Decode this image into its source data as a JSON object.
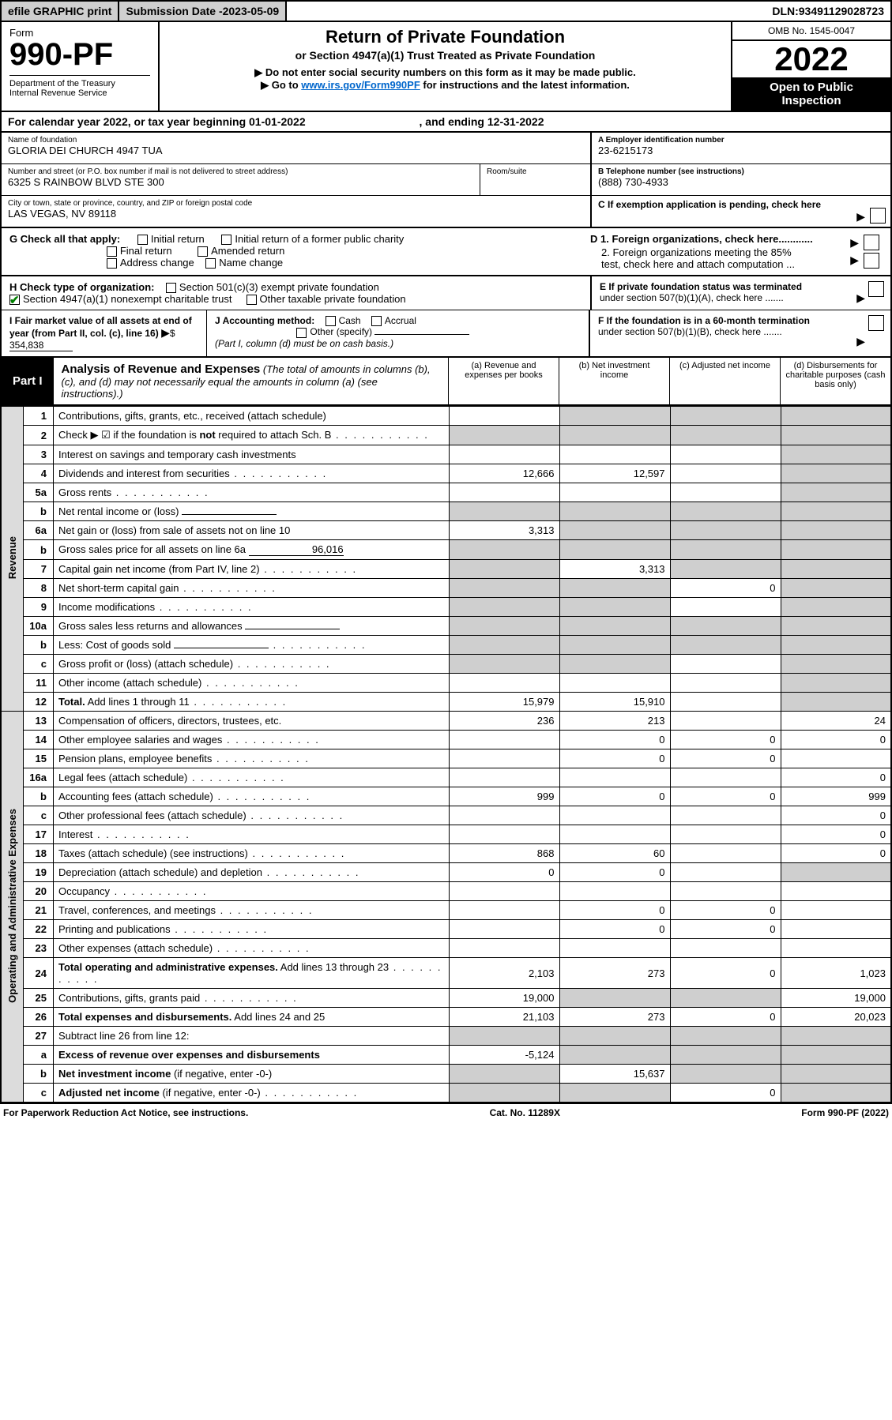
{
  "topbar": {
    "efile": "efile GRAPHIC print",
    "submission_label": "Submission Date - ",
    "submission_date": "2023-05-09",
    "dln_label": "DLN: ",
    "dln": "93491129028723"
  },
  "header": {
    "form_word": "Form",
    "form_num": "990-PF",
    "dept1": "Department of the Treasury",
    "dept2": "Internal Revenue Service",
    "title": "Return of Private Foundation",
    "sub1": "or Section 4947(a)(1) Trust Treated as Private Foundation",
    "sub2": "▶ Do not enter social security numbers on this form as it may be made public.",
    "sub3_pre": "▶ Go to ",
    "sub3_link": "www.irs.gov/Form990PF",
    "sub3_post": " for instructions and the latest information.",
    "omb": "OMB No. 1545-0047",
    "year": "2022",
    "open_pub1": "Open to Public",
    "open_pub2": "Inspection"
  },
  "cal_year": {
    "text_pre": "For calendar year 2022, or tax year beginning ",
    "begin": "01-01-2022",
    "text_mid": " , and ending ",
    "end": "12-31-2022"
  },
  "info": {
    "name_lbl": "Name of foundation",
    "name_val": "GLORIA DEI CHURCH 4947 TUA",
    "addr_lbl": "Number and street (or P.O. box number if mail is not delivered to street address)",
    "addr_val": "6325 S RAINBOW BLVD STE 300",
    "room_lbl": "Room/suite",
    "city_lbl": "City or town, state or province, country, and ZIP or foreign postal code",
    "city_val": "LAS VEGAS, NV  89118",
    "ein_lbl": "A Employer identification number",
    "ein_val": "23-6215173",
    "tel_lbl": "B Telephone number (see instructions)",
    "tel_val": "(888) 730-4933",
    "c_lbl": "C If exemption application is pending, check here",
    "d1": "D 1. Foreign organizations, check here............",
    "d2a": "2. Foreign organizations meeting the 85%",
    "d2b": "test, check here and attach computation ...",
    "e1": "E  If private foundation status was terminated",
    "e2": "under section 507(b)(1)(A), check here .......",
    "f1": "F  If the foundation is in a 60-month termination",
    "f2": "under section 507(b)(1)(B), check here .......",
    "g_lbl": "G Check all that apply:",
    "g_opts": [
      "Initial return",
      "Initial return of a former public charity",
      "Final return",
      "Amended return",
      "Address change",
      "Name change"
    ],
    "h_lbl": "H Check type of organization:",
    "h_opts": [
      "Section 501(c)(3) exempt private foundation",
      "Section 4947(a)(1) nonexempt charitable trust",
      "Other taxable private foundation"
    ],
    "i_lbl": "I Fair market value of all assets at end of year (from Part II, col. (c), line 16)",
    "i_val": "354,838",
    "j_lbl": "J Accounting method:",
    "j_opts": [
      "Cash",
      "Accrual",
      "Other (specify)"
    ],
    "j_note": "(Part I, column (d) must be on cash basis.)"
  },
  "part1": {
    "label": "Part I",
    "title": "Analysis of Revenue and Expenses",
    "title_note": " (The total of amounts in columns (b), (c), and (d) may not necessarily equal the amounts in column (a) (see instructions).)",
    "col_a": "(a)  Revenue and expenses per books",
    "col_b": "(b)  Net investment income",
    "col_c": "(c)  Adjusted net income",
    "col_d": "(d)  Disbursements for charitable purposes (cash basis only)"
  },
  "vlabels": {
    "revenue": "Revenue",
    "expenses": "Operating and Administrative Expenses"
  },
  "rows": [
    {
      "n": "1",
      "d": "Contributions, gifts, grants, etc., received (attach schedule)",
      "a": "",
      "b": "s",
      "c": "s",
      "ds": "s"
    },
    {
      "n": "2",
      "d": "Check ▶ ☑ if the foundation is <b>not</b> required to attach Sch. B",
      "dots": true,
      "a": "s",
      "b": "s",
      "c": "s",
      "ds": "s"
    },
    {
      "n": "3",
      "d": "Interest on savings and temporary cash investments",
      "a": "",
      "b": "",
      "c": "",
      "ds": "s"
    },
    {
      "n": "4",
      "d": "Dividends and interest from securities",
      "dots": true,
      "a": "12,666",
      "b": "12,597",
      "c": "",
      "ds": "s"
    },
    {
      "n": "5a",
      "d": "Gross rents",
      "dots": true,
      "a": "",
      "b": "",
      "c": "",
      "ds": "s"
    },
    {
      "n": "b",
      "d": "Net rental income or (loss)",
      "inline": true,
      "a": "s",
      "b": "s",
      "c": "s",
      "ds": "s"
    },
    {
      "n": "6a",
      "d": "Net gain or (loss) from sale of assets not on line 10",
      "a": "3,313",
      "b": "s",
      "c": "s",
      "ds": "s"
    },
    {
      "n": "b",
      "d": "Gross sales price for all assets on line 6a",
      "inline": true,
      "inlineval": "96,016",
      "a": "s",
      "b": "s",
      "c": "s",
      "ds": "s"
    },
    {
      "n": "7",
      "d": "Capital gain net income (from Part IV, line 2)",
      "dots": true,
      "a": "s",
      "b": "3,313",
      "c": "s",
      "ds": "s"
    },
    {
      "n": "8",
      "d": "Net short-term capital gain",
      "dots": true,
      "a": "s",
      "b": "s",
      "c": "0",
      "ds": "s"
    },
    {
      "n": "9",
      "d": "Income modifications",
      "dots": true,
      "a": "s",
      "b": "s",
      "c": "",
      "ds": "s"
    },
    {
      "n": "10a",
      "d": "Gross sales less returns and allowances",
      "inline": true,
      "a": "s",
      "b": "s",
      "c": "s",
      "ds": "s"
    },
    {
      "n": "b",
      "d": "Less: Cost of goods sold",
      "dots": true,
      "inline": true,
      "a": "s",
      "b": "s",
      "c": "s",
      "ds": "s"
    },
    {
      "n": "c",
      "d": "Gross profit or (loss) (attach schedule)",
      "dots": true,
      "a": "s",
      "b": "s",
      "c": "",
      "ds": "s"
    },
    {
      "n": "11",
      "d": "Other income (attach schedule)",
      "dots": true,
      "a": "",
      "b": "",
      "c": "",
      "ds": "s"
    },
    {
      "n": "12",
      "d": "<b>Total.</b> Add lines 1 through 11",
      "dots": true,
      "a": "15,979",
      "b": "15,910",
      "c": "",
      "ds": "s"
    },
    {
      "n": "13",
      "d": "Compensation of officers, directors, trustees, etc.",
      "a": "236",
      "b": "213",
      "c": "",
      "ds": "24"
    },
    {
      "n": "14",
      "d": "Other employee salaries and wages",
      "dots": true,
      "a": "",
      "b": "0",
      "c": "0",
      "ds": "0"
    },
    {
      "n": "15",
      "d": "Pension plans, employee benefits",
      "dots": true,
      "a": "",
      "b": "0",
      "c": "0",
      "ds": ""
    },
    {
      "n": "16a",
      "d": "Legal fees (attach schedule)",
      "dots": true,
      "a": "",
      "b": "",
      "c": "",
      "ds": "0"
    },
    {
      "n": "b",
      "d": "Accounting fees (attach schedule)",
      "dots": true,
      "a": "999",
      "b": "0",
      "c": "0",
      "ds": "999"
    },
    {
      "n": "c",
      "d": "Other professional fees (attach schedule)",
      "dots": true,
      "a": "",
      "b": "",
      "c": "",
      "ds": "0"
    },
    {
      "n": "17",
      "d": "Interest",
      "dots": true,
      "a": "",
      "b": "",
      "c": "",
      "ds": "0"
    },
    {
      "n": "18",
      "d": "Taxes (attach schedule) (see instructions)",
      "dots": true,
      "a": "868",
      "b": "60",
      "c": "",
      "ds": "0"
    },
    {
      "n": "19",
      "d": "Depreciation (attach schedule) and depletion",
      "dots": true,
      "a": "0",
      "b": "0",
      "c": "",
      "ds": "s"
    },
    {
      "n": "20",
      "d": "Occupancy",
      "dots": true,
      "a": "",
      "b": "",
      "c": "",
      "ds": ""
    },
    {
      "n": "21",
      "d": "Travel, conferences, and meetings",
      "dots": true,
      "a": "",
      "b": "0",
      "c": "0",
      "ds": ""
    },
    {
      "n": "22",
      "d": "Printing and publications",
      "dots": true,
      "a": "",
      "b": "0",
      "c": "0",
      "ds": ""
    },
    {
      "n": "23",
      "d": "Other expenses (attach schedule)",
      "dots": true,
      "a": "",
      "b": "",
      "c": "",
      "ds": ""
    },
    {
      "n": "24",
      "d": "<b>Total operating and administrative expenses.</b> Add lines 13 through 23",
      "dots": true,
      "a": "2,103",
      "b": "273",
      "c": "0",
      "ds": "1,023"
    },
    {
      "n": "25",
      "d": "Contributions, gifts, grants paid",
      "dots": true,
      "a": "19,000",
      "b": "s",
      "c": "s",
      "ds": "19,000"
    },
    {
      "n": "26",
      "d": "<b>Total expenses and disbursements.</b> Add lines 24 and 25",
      "a": "21,103",
      "b": "273",
      "c": "0",
      "ds": "20,023"
    },
    {
      "n": "27",
      "d": "Subtract line 26 from line 12:",
      "a": "s",
      "b": "s",
      "c": "s",
      "ds": "s"
    },
    {
      "n": "a",
      "d": "<b>Excess of revenue over expenses and disbursements</b>",
      "a": "-5,124",
      "b": "s",
      "c": "s",
      "ds": "s"
    },
    {
      "n": "b",
      "d": "<b>Net investment income</b> (if negative, enter -0-)",
      "a": "s",
      "b": "15,637",
      "c": "s",
      "ds": "s"
    },
    {
      "n": "c",
      "d": "<b>Adjusted net income</b> (if negative, enter -0-)",
      "dots": true,
      "a": "s",
      "b": "s",
      "c": "0",
      "ds": "s"
    }
  ],
  "footer": {
    "left": "For Paperwork Reduction Act Notice, see instructions.",
    "mid": "Cat. No. 11289X",
    "right": "Form 990-PF (2022)"
  },
  "colors": {
    "shade": "#cfcfcf",
    "link": "#0066cc",
    "check": "#008000"
  }
}
